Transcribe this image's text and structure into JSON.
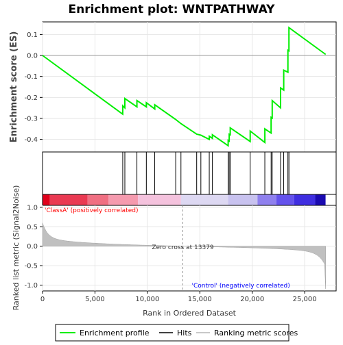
{
  "chart_data": {
    "type": "line",
    "title": "Enrichment plot: WNTPATHWAY",
    "top_ylabel": "Enrichment score (ES)",
    "bottom_ylabel": "Ranked list metric (Signal2Noise)",
    "xlabel": "Rank in Ordered Dataset",
    "xlim": [
      0,
      28000
    ],
    "x_ticks": [
      0,
      5000,
      10000,
      15000,
      20000,
      25000
    ],
    "x_tick_labels": [
      "0",
      "5,000",
      "10,000",
      "15,000",
      "20,000",
      "25,000"
    ],
    "es_ylim": [
      -0.46,
      0.16
    ],
    "es_ticks": [
      -0.4,
      -0.3,
      -0.2,
      -0.1,
      0.0,
      0.1
    ],
    "es_tick_labels": [
      "-0.4",
      "-0.3",
      "-0.2",
      "-0.1",
      "0.0",
      "0.1"
    ],
    "metric_ylim": [
      -1.15,
      1.05
    ],
    "metric_ticks": [
      1.0,
      0.5,
      0.0,
      -0.5,
      -1.0
    ],
    "metric_tick_labels": [
      "1.0",
      "0.5",
      "0.0",
      "-0.5",
      "-1.0"
    ],
    "hits": [
      7650,
      7850,
      9000,
      9900,
      10700,
      12700,
      13200,
      14700,
      15100,
      15900,
      16200,
      17700,
      17800,
      17900,
      19800,
      21200,
      21800,
      21900,
      22700,
      23000,
      23400,
      23500
    ],
    "enrichment_profile": [
      [
        0,
        0.0
      ],
      [
        7650,
        -0.28
      ],
      [
        7651,
        -0.24
      ],
      [
        7850,
        -0.25
      ],
      [
        7851,
        -0.205
      ],
      [
        9000,
        -0.245
      ],
      [
        9001,
        -0.215
      ],
      [
        9900,
        -0.245
      ],
      [
        9901,
        -0.225
      ],
      [
        10700,
        -0.255
      ],
      [
        10701,
        -0.235
      ],
      [
        12700,
        -0.305
      ],
      [
        13200,
        -0.325
      ],
      [
        14700,
        -0.375
      ],
      [
        15100,
        -0.38
      ],
      [
        15900,
        -0.4
      ],
      [
        15901,
        -0.385
      ],
      [
        16200,
        -0.395
      ],
      [
        16201,
        -0.378
      ],
      [
        17700,
        -0.43
      ],
      [
        17701,
        -0.405
      ],
      [
        17800,
        -0.408
      ],
      [
        17801,
        -0.375
      ],
      [
        17900,
        -0.378
      ],
      [
        17901,
        -0.345
      ],
      [
        19800,
        -0.41
      ],
      [
        19801,
        -0.36
      ],
      [
        21200,
        -0.415
      ],
      [
        21201,
        -0.35
      ],
      [
        21800,
        -0.37
      ],
      [
        21801,
        -0.295
      ],
      [
        21900,
        -0.298
      ],
      [
        21901,
        -0.215
      ],
      [
        22700,
        -0.25
      ],
      [
        22701,
        -0.155
      ],
      [
        23000,
        -0.165
      ],
      [
        23001,
        -0.07
      ],
      [
        23400,
        -0.08
      ],
      [
        23401,
        0.025
      ],
      [
        23500,
        0.022
      ],
      [
        23501,
        0.133
      ],
      [
        27000,
        0.005
      ]
    ],
    "zero_cross": 13379,
    "zero_cross_label": "Zero cross at 13379",
    "class_a_label": "'ClassA' (positively correlated)",
    "control_label": "'Control' (negatively correlated)",
    "legend": [
      "Enrichment profile",
      "Hits",
      "Ranking metric scores"
    ],
    "colors": {
      "profile": "#00ee00",
      "hits": "#000000",
      "metric_fill": "#c0c0c0",
      "class_a_text": "#ff0000",
      "control_text": "#0000ff",
      "zero_cross_line": "#999999"
    },
    "heatmap_bar_colors": [
      "#e8001a",
      "#f0505e",
      "#f98a9d",
      "#f7b8d4",
      "#dedcf3",
      "#b7b0ee",
      "#6d5cf0",
      "#3a25dd",
      "#1a0ab0"
    ]
  }
}
